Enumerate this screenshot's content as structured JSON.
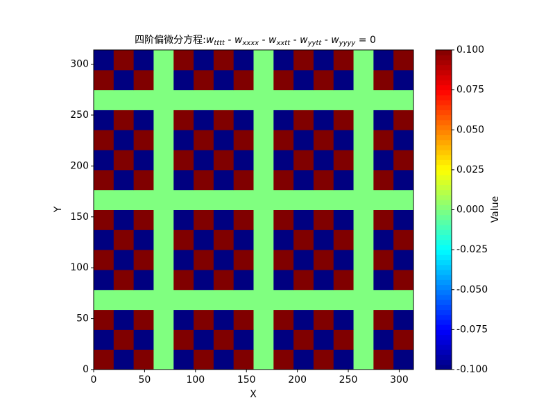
{
  "chart_data": {
    "type": "heatmap",
    "title": {
      "prefix": "四阶偏微分方程:",
      "terms": [
        {
          "base": "w",
          "sub": "tttt"
        },
        {
          "base": "w",
          "sub": "xxxx"
        },
        {
          "base": "w",
          "sub": "xxtt"
        },
        {
          "base": "w",
          "sub": "yytt"
        },
        {
          "base": "w",
          "sub": "yyyy"
        }
      ],
      "separator": " - ",
      "suffix": " = 0"
    },
    "x_label": "X",
    "y_label": "Y",
    "colorbar_label": "Value",
    "colormap": "jet",
    "xlim": [
      0,
      314
    ],
    "ylim": [
      0,
      314
    ],
    "xticks": [
      0,
      50,
      100,
      150,
      200,
      250,
      300
    ],
    "yticks": [
      0,
      50,
      100,
      150,
      200,
      250,
      300
    ],
    "clim": [
      -0.1,
      0.1
    ],
    "cticks": [
      {
        "value": -0.1,
        "label": "-0.100"
      },
      {
        "value": -0.075,
        "label": "-0.075"
      },
      {
        "value": -0.05,
        "label": "-0.050"
      },
      {
        "value": -0.025,
        "label": "-0.025"
      },
      {
        "value": 0,
        "label": "0.000"
      },
      {
        "value": 0.025,
        "label": "0.025"
      },
      {
        "value": 0.05,
        "label": "0.050"
      },
      {
        "value": 0.075,
        "label": "0.075"
      },
      {
        "value": 0.1,
        "label": "0.100"
      }
    ],
    "values": [
      [
        0.1,
        -0.1,
        0.1,
        0,
        -0.1,
        0.1,
        -0.1,
        0.1,
        0,
        0.1,
        -0.1,
        0.1,
        -0.1,
        0,
        0.1,
        -0.1
      ],
      [
        -0.1,
        0.1,
        -0.1,
        0,
        0.1,
        -0.1,
        0.1,
        -0.1,
        0,
        -0.1,
        0.1,
        -0.1,
        0.1,
        0,
        -0.1,
        0.1
      ],
      [
        0.1,
        -0.1,
        0.1,
        0,
        -0.1,
        0.1,
        -0.1,
        0.1,
        0,
        0.1,
        -0.1,
        0.1,
        -0.1,
        0,
        0.1,
        -0.1
      ],
      [
        0,
        0,
        0,
        0,
        0,
        0,
        0,
        0,
        0,
        0,
        0,
        0,
        0,
        0,
        0,
        0
      ],
      [
        -0.1,
        0.1,
        -0.1,
        0,
        0.1,
        -0.1,
        0.1,
        -0.1,
        0,
        -0.1,
        0.1,
        -0.1,
        0.1,
        0,
        -0.1,
        0.1
      ],
      [
        0.1,
        -0.1,
        0.1,
        0,
        -0.1,
        0.1,
        -0.1,
        0.1,
        0,
        0.1,
        -0.1,
        0.1,
        -0.1,
        0,
        0.1,
        -0.1
      ],
      [
        -0.1,
        0.1,
        -0.1,
        0,
        0.1,
        -0.1,
        0.1,
        -0.1,
        0,
        -0.1,
        0.1,
        -0.1,
        0.1,
        0,
        -0.1,
        0.1
      ],
      [
        0.1,
        -0.1,
        0.1,
        0,
        -0.1,
        0.1,
        -0.1,
        0.1,
        0,
        0.1,
        -0.1,
        0.1,
        -0.1,
        0,
        0.1,
        -0.1
      ],
      [
        0,
        0,
        0,
        0,
        0,
        0,
        0,
        0,
        0,
        0,
        0,
        0,
        0,
        0,
        0,
        0
      ],
      [
        0.1,
        -0.1,
        0.1,
        0,
        -0.1,
        0.1,
        -0.1,
        0.1,
        0,
        0.1,
        -0.1,
        0.1,
        -0.1,
        0,
        0.1,
        -0.1
      ],
      [
        -0.1,
        0.1,
        -0.1,
        0,
        0.1,
        -0.1,
        0.1,
        -0.1,
        0,
        -0.1,
        0.1,
        -0.1,
        0.1,
        0,
        -0.1,
        0.1
      ],
      [
        0.1,
        -0.1,
        0.1,
        0,
        -0.1,
        0.1,
        -0.1,
        0.1,
        0,
        0.1,
        -0.1,
        0.1,
        -0.1,
        0,
        0.1,
        -0.1
      ],
      [
        -0.1,
        0.1,
        -0.1,
        0,
        0.1,
        -0.1,
        0.1,
        -0.1,
        0,
        -0.1,
        0.1,
        -0.1,
        0.1,
        0,
        -0.1,
        0.1
      ],
      [
        0,
        0,
        0,
        0,
        0,
        0,
        0,
        0,
        0,
        0,
        0,
        0,
        0,
        0,
        0,
        0
      ],
      [
        0.1,
        -0.1,
        0.1,
        0,
        -0.1,
        0.1,
        -0.1,
        0.1,
        0,
        0.1,
        -0.1,
        0.1,
        -0.1,
        0,
        0.1,
        -0.1
      ],
      [
        -0.1,
        0.1,
        -0.1,
        0,
        0.1,
        -0.1,
        0.1,
        -0.1,
        0,
        -0.1,
        0.1,
        -0.1,
        0.1,
        0,
        -0.1,
        0.1
      ]
    ]
  }
}
